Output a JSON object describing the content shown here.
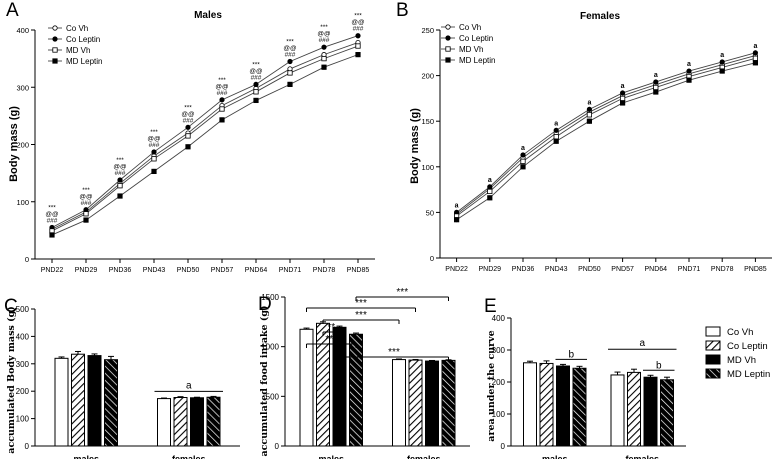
{
  "chart_data": [
    {
      "panel": "A",
      "type": "line",
      "title": "Males",
      "ylabel": "Body mass (g)",
      "xlabel": "",
      "ylim": [
        0,
        400
      ],
      "yticks": [
        0,
        100,
        200,
        300,
        400
      ],
      "categories": [
        "PND22",
        "PND29",
        "PND36",
        "PND43",
        "PND50",
        "PND57",
        "PND64",
        "PND71",
        "PND78",
        "PND85"
      ],
      "series": [
        {
          "name": "Co Vh",
          "marker": "open-circle",
          "values": [
            52,
            82,
            132,
            180,
            220,
            268,
            298,
            332,
            357,
            378
          ]
        },
        {
          "name": "Co Leptin",
          "marker": "filled-circle",
          "values": [
            55,
            86,
            138,
            187,
            230,
            278,
            305,
            345,
            370,
            390
          ]
        },
        {
          "name": "MD Vh",
          "marker": "open-square",
          "values": [
            49,
            79,
            128,
            175,
            215,
            262,
            292,
            325,
            350,
            372
          ]
        },
        {
          "name": "MD Leptin",
          "marker": "filled-square",
          "values": [
            42,
            68,
            110,
            153,
            196,
            243,
            277,
            305,
            335,
            357
          ]
        }
      ],
      "annotations": [
        {
          "category": "PND22",
          "lines": [
            "***",
            "@@",
            "###"
          ]
        },
        {
          "category": "PND29",
          "lines": [
            "***",
            "@@",
            "###"
          ]
        },
        {
          "category": "PND36",
          "lines": [
            "***",
            "@@",
            "###"
          ]
        },
        {
          "category": "PND43",
          "lines": [
            "***",
            "@@",
            "###"
          ]
        },
        {
          "category": "PND50",
          "lines": [
            "***",
            "@@",
            "###"
          ]
        },
        {
          "category": "PND57",
          "lines": [
            "***",
            "@@",
            "###"
          ]
        },
        {
          "category": "PND64",
          "lines": [
            "***",
            "@@",
            "###"
          ]
        },
        {
          "category": "PND71",
          "lines": [
            "***",
            "@@",
            "###"
          ]
        },
        {
          "category": "PND78",
          "lines": [
            "***",
            "@@",
            "###"
          ]
        },
        {
          "category": "PND85",
          "lines": [
            "***",
            "@@",
            "###"
          ]
        }
      ]
    },
    {
      "panel": "B",
      "type": "line",
      "title": "Females",
      "ylabel": "Body mass (g)",
      "xlabel": "",
      "ylim": [
        0,
        250
      ],
      "yticks": [
        0,
        50,
        100,
        150,
        200,
        250
      ],
      "categories": [
        "PND22",
        "PND29",
        "PND36",
        "PND43",
        "PND50",
        "PND57",
        "PND64",
        "PND71",
        "PND78",
        "PND85"
      ],
      "series": [
        {
          "name": "Co Vh",
          "marker": "open-circle",
          "values": [
            48,
            76,
            110,
            137,
            160,
            178,
            190,
            202,
            212,
            222
          ]
        },
        {
          "name": "Co Leptin",
          "marker": "filled-circle",
          "values": [
            50,
            78,
            113,
            140,
            163,
            181,
            193,
            205,
            215,
            225
          ]
        },
        {
          "name": "MD Vh",
          "marker": "open-square",
          "values": [
            46,
            73,
            106,
            133,
            157,
            175,
            187,
            199,
            209,
            219
          ]
        },
        {
          "name": "MD Leptin",
          "marker": "filled-square",
          "values": [
            42,
            66,
            100,
            128,
            150,
            170,
            182,
            195,
            205,
            214
          ]
        }
      ],
      "annotations": [
        {
          "category": "PND22",
          "lines": [
            "a"
          ]
        },
        {
          "category": "PND29",
          "lines": [
            "a"
          ]
        },
        {
          "category": "PND36",
          "lines": [
            "a"
          ]
        },
        {
          "category": "PND43",
          "lines": [
            "a"
          ]
        },
        {
          "category": "PND50",
          "lines": [
            "a"
          ]
        },
        {
          "category": "PND57",
          "lines": [
            "a"
          ]
        },
        {
          "category": "PND64",
          "lines": [
            "a"
          ]
        },
        {
          "category": "PND71",
          "lines": [
            "a"
          ]
        },
        {
          "category": "PND78",
          "lines": [
            "a"
          ]
        },
        {
          "category": "PND85",
          "lines": [
            "a"
          ]
        }
      ]
    },
    {
      "panel": "C",
      "type": "bar",
      "title": "",
      "ylabel": "accumulated Body mass (g)",
      "xlabel": "",
      "ylim": [
        0,
        500
      ],
      "yticks": [
        0,
        100,
        200,
        300,
        400,
        500
      ],
      "categories": [
        "males",
        "females"
      ],
      "series": [
        {
          "name": "Co Vh",
          "pattern": "white",
          "values": [
            320,
            173
          ]
        },
        {
          "name": "Co Leptin",
          "pattern": "hatch",
          "values": [
            335,
            177
          ]
        },
        {
          "name": "MD Vh",
          "pattern": "black",
          "values": [
            330,
            176
          ]
        },
        {
          "name": "MD Leptin",
          "pattern": "black-hatch",
          "values": [
            315,
            178
          ]
        }
      ],
      "errors": [
        [
          5,
          2
        ],
        [
          10,
          3
        ],
        [
          6,
          2
        ],
        [
          12,
          3
        ]
      ],
      "annotations": [
        {
          "text": "a",
          "category": "females"
        }
      ]
    },
    {
      "panel": "D",
      "type": "bar",
      "title": "",
      "ylabel": "accumulated food intake (g)",
      "xlabel": "",
      "ylim": [
        0,
        1500
      ],
      "yticks": [
        0,
        500,
        1000,
        1500
      ],
      "categories": [
        "males",
        "females"
      ],
      "series": [
        {
          "name": "Co Vh",
          "pattern": "white",
          "values": [
            1175,
            870
          ]
        },
        {
          "name": "Co Leptin",
          "pattern": "hatch",
          "values": [
            1235,
            865
          ]
        },
        {
          "name": "MD Vh",
          "pattern": "black",
          "values": [
            1195,
            855
          ]
        },
        {
          "name": "MD Leptin",
          "pattern": "black-hatch",
          "values": [
            1125,
            862
          ]
        }
      ],
      "errors": [
        [
          12,
          6
        ],
        [
          15,
          6
        ],
        [
          12,
          6
        ],
        [
          12,
          6
        ]
      ],
      "annotations": [
        {
          "text": "***",
          "from": [
            0,
            3
          ],
          "to": [
            1,
            3
          ]
        },
        {
          "text": "***",
          "from": [
            0,
            0
          ],
          "to": [
            1,
            1
          ]
        },
        {
          "text": "***",
          "from": [
            0,
            1
          ],
          "to": [
            1,
            0
          ]
        },
        {
          "text": "**",
          "from": [
            0,
            1
          ],
          "to": [
            0,
            2
          ]
        },
        {
          "text": "***",
          "from": [
            0,
            0
          ],
          "to": [
            0,
            3
          ]
        },
        {
          "text": "***",
          "from": [
            0,
            2
          ],
          "to": [
            1,
            3
          ]
        }
      ]
    },
    {
      "panel": "E",
      "type": "bar",
      "title": "",
      "ylabel": "area under the curve",
      "xlabel": "",
      "ylim": [
        0,
        400
      ],
      "yticks": [
        0,
        100,
        200,
        300,
        400
      ],
      "categories": [
        "males",
        "females"
      ],
      "series": [
        {
          "name": "Co Vh",
          "pattern": "white",
          "values": [
            260,
            222
          ]
        },
        {
          "name": "Co Leptin",
          "pattern": "hatch",
          "values": [
            258,
            230
          ]
        },
        {
          "name": "MD Vh",
          "pattern": "black",
          "values": [
            250,
            215
          ]
        },
        {
          "name": "MD Leptin",
          "pattern": "black-hatch",
          "values": [
            243,
            207
          ]
        }
      ],
      "errors": [
        [
          5,
          9
        ],
        [
          8,
          10
        ],
        [
          5,
          6
        ],
        [
          6,
          8
        ]
      ],
      "annotations": [
        {
          "text": "b",
          "category": "males"
        },
        {
          "text": "a",
          "category": "females"
        },
        {
          "text": "b",
          "category": "females"
        }
      ],
      "legend": [
        "Co Vh",
        "Co Leptin",
        "MD Vh",
        "MD Leptin"
      ]
    }
  ]
}
